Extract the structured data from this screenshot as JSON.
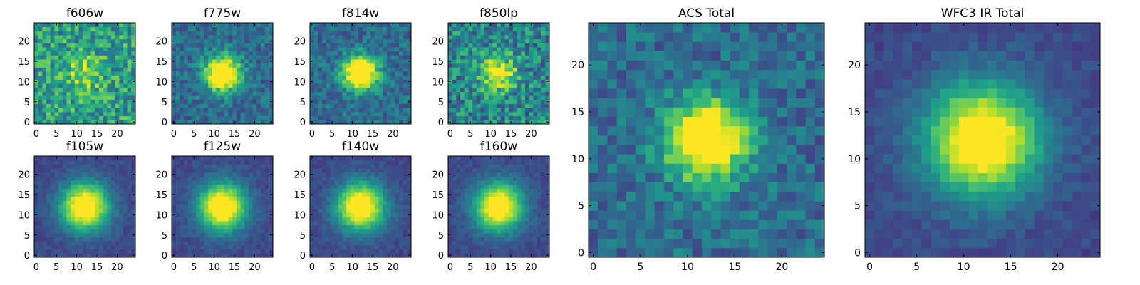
{
  "chart_data": [
    {
      "type": "heatmap",
      "title": "f606w",
      "xlim": [
        -0.5,
        24.5
      ],
      "ylim": [
        -0.5,
        24.5
      ],
      "xticks": [
        0,
        5,
        10,
        15,
        20
      ],
      "yticks": [
        0,
        5,
        10,
        15,
        20
      ],
      "grid": false,
      "colormap": "viridis",
      "image_size": [
        25,
        25
      ],
      "peak_center": [
        12,
        12
      ],
      "peak_strength": "weak",
      "noise": "high"
    },
    {
      "type": "heatmap",
      "title": "f775w",
      "xlim": [
        -0.5,
        24.5
      ],
      "ylim": [
        -0.5,
        24.5
      ],
      "xticks": [
        0,
        5,
        10,
        15,
        20
      ],
      "yticks": [
        0,
        5,
        10,
        15,
        20
      ],
      "grid": false,
      "colormap": "viridis",
      "image_size": [
        25,
        25
      ],
      "peak_center": [
        12,
        12
      ],
      "peak_strength": "strong",
      "noise": "medium"
    },
    {
      "type": "heatmap",
      "title": "f814w",
      "xlim": [
        -0.5,
        24.5
      ],
      "ylim": [
        -0.5,
        24.5
      ],
      "xticks": [
        0,
        5,
        10,
        15,
        20
      ],
      "yticks": [
        0,
        5,
        10,
        15,
        20
      ],
      "grid": false,
      "colormap": "viridis",
      "image_size": [
        25,
        25
      ],
      "peak_center": [
        12,
        12
      ],
      "peak_strength": "strong",
      "noise": "medium"
    },
    {
      "type": "heatmap",
      "title": "f850lp",
      "xlim": [
        -0.5,
        24.5
      ],
      "ylim": [
        -0.5,
        24.5
      ],
      "xticks": [
        0,
        5,
        10,
        15,
        20
      ],
      "yticks": [
        0,
        5,
        10,
        15,
        20
      ],
      "grid": false,
      "colormap": "viridis",
      "image_size": [
        25,
        25
      ],
      "peak_center": [
        12,
        12
      ],
      "peak_strength": "medium",
      "noise": "high"
    },
    {
      "type": "heatmap",
      "title": "ACS Total",
      "xlim": [
        -0.5,
        24.5
      ],
      "ylim": [
        -0.5,
        24.5
      ],
      "xticks": [
        0,
        5,
        10,
        15,
        20
      ],
      "yticks": [
        0,
        5,
        10,
        15,
        20
      ],
      "grid": false,
      "colormap": "viridis",
      "image_size": [
        25,
        25
      ],
      "peak_center": [
        12,
        12
      ],
      "peak_strength": "strong",
      "noise": "medium"
    },
    {
      "type": "heatmap",
      "title": "WFC3 IR Total",
      "xlim": [
        -0.5,
        24.5
      ],
      "ylim": [
        -0.5,
        24.5
      ],
      "xticks": [
        0,
        5,
        10,
        15,
        20
      ],
      "yticks": [
        0,
        5,
        10,
        15,
        20
      ],
      "grid": false,
      "colormap": "viridis",
      "image_size": [
        25,
        25
      ],
      "peak_center": [
        12,
        12
      ],
      "peak_strength": "strong",
      "noise": "low"
    },
    {
      "type": "heatmap",
      "title": "f105w",
      "xlim": [
        -0.5,
        24.5
      ],
      "ylim": [
        -0.5,
        24.5
      ],
      "xticks": [
        0,
        5,
        10,
        15,
        20
      ],
      "yticks": [
        0,
        5,
        10,
        15,
        20
      ],
      "grid": false,
      "colormap": "viridis",
      "image_size": [
        25,
        25
      ],
      "peak_center": [
        12,
        12
      ],
      "peak_strength": "strong",
      "noise": "low"
    },
    {
      "type": "heatmap",
      "title": "f125w",
      "xlim": [
        -0.5,
        24.5
      ],
      "ylim": [
        -0.5,
        24.5
      ],
      "xticks": [
        0,
        5,
        10,
        15,
        20
      ],
      "yticks": [
        0,
        5,
        10,
        15,
        20
      ],
      "grid": false,
      "colormap": "viridis",
      "image_size": [
        25,
        25
      ],
      "peak_center": [
        12,
        12
      ],
      "peak_strength": "strong",
      "noise": "low"
    },
    {
      "type": "heatmap",
      "title": "f140w",
      "xlim": [
        -0.5,
        24.5
      ],
      "ylim": [
        -0.5,
        24.5
      ],
      "xticks": [
        0,
        5,
        10,
        15,
        20
      ],
      "yticks": [
        0,
        5,
        10,
        15,
        20
      ],
      "grid": false,
      "colormap": "viridis",
      "image_size": [
        25,
        25
      ],
      "peak_center": [
        12,
        12
      ],
      "peak_strength": "strong",
      "noise": "low"
    },
    {
      "type": "heatmap",
      "title": "f160w",
      "xlim": [
        -0.5,
        24.5
      ],
      "ylim": [
        -0.5,
        24.5
      ],
      "xticks": [
        0,
        5,
        10,
        15,
        20
      ],
      "yticks": [
        0,
        5,
        10,
        15,
        20
      ],
      "grid": false,
      "colormap": "viridis",
      "image_size": [
        25,
        25
      ],
      "peak_center": [
        12,
        12
      ],
      "peak_strength": "strong",
      "noise": "low"
    }
  ]
}
